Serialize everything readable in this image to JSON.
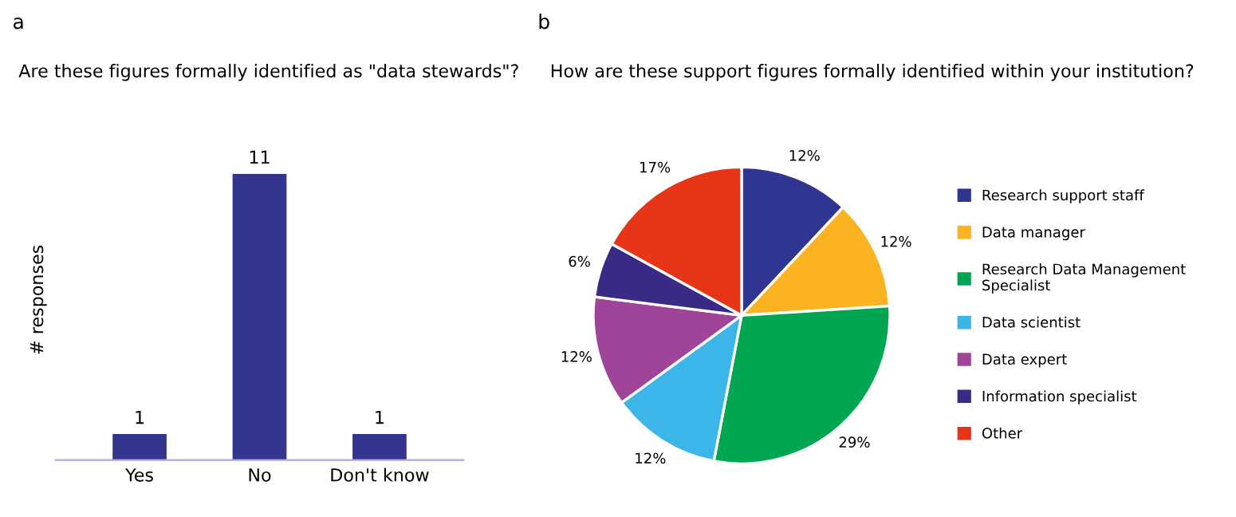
{
  "chart_data": [
    {
      "type": "bar",
      "title": "Are these figures formally identified as \"data stewards\"?",
      "ylabel": "# responses",
      "annotations": [
        "a"
      ],
      "categories": [
        "Yes",
        "No",
        "Don't know"
      ],
      "values": [
        1,
        11,
        1
      ],
      "color": "#33348e",
      "data_labels": true,
      "tick_labels": "x",
      "grid": false
    },
    {
      "type": "pie",
      "title": "How are these support figures formally identified within your institution?",
      "annotations": [
        "b"
      ],
      "categories": [
        "Research support staff",
        "Data manager",
        "Research Data Management Specialist",
        "Data scientist",
        "Data expert",
        "Information specialist",
        "Other"
      ],
      "values": [
        12,
        12,
        29,
        12,
        12,
        6,
        17
      ],
      "colors": [
        "#2f3590",
        "#fbb321",
        "#00a651",
        "#3cb6e8",
        "#a0449a",
        "#3a2a85",
        "#e63517"
      ],
      "value_labels": [
        "12%",
        "12%",
        "29%",
        "12%",
        "12%",
        "6%",
        "17%"
      ],
      "legend": "right"
    }
  ]
}
